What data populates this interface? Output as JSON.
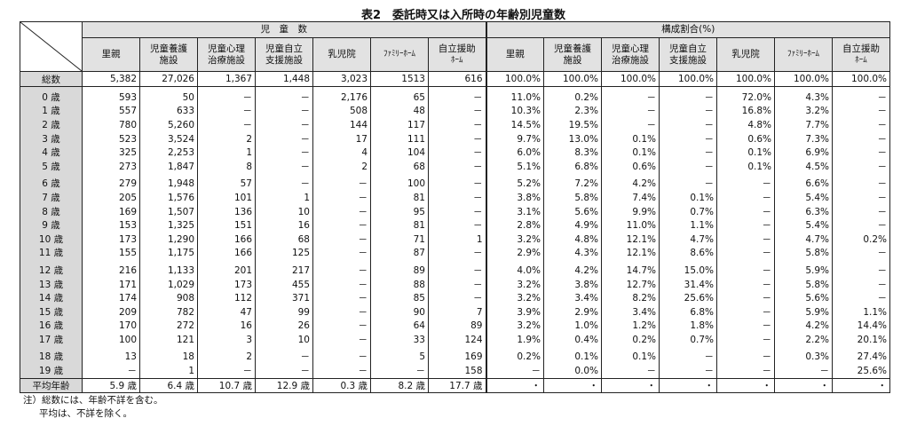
{
  "title": "表2　委託時又は入所時の年齢別児童数",
  "group_headers": [
    "児　童　数",
    "構成割合(%)"
  ],
  "columns": [
    "里親",
    "児童養護\n施設",
    "児童心理\n治療施設",
    "児童自立\n支援施設",
    "乳児院",
    "ﾌｧﾐﾘｰﾎｰﾑ",
    "自立援助\nﾎｰﾑ"
  ],
  "total_row": {
    "label": "総数",
    "counts": [
      "5,382",
      "27,026",
      "1,367",
      "1,448",
      "3,023",
      "1513",
      "616"
    ],
    "pcts": [
      "100.0%",
      "100.0%",
      "100.0%",
      "100.0%",
      "100.0%",
      "100.0%",
      "100.0%"
    ]
  },
  "row_groups": [
    [
      {
        "label": "0 歳",
        "counts": [
          "593",
          "50",
          "－",
          "－",
          "2,176",
          "65",
          "－"
        ],
        "pcts": [
          "11.0%",
          "0.2%",
          "－",
          "－",
          "72.0%",
          "4.3%",
          "－"
        ]
      },
      {
        "label": "1 歳",
        "counts": [
          "557",
          "633",
          "－",
          "－",
          "508",
          "48",
          "－"
        ],
        "pcts": [
          "10.3%",
          "2.3%",
          "－",
          "－",
          "16.8%",
          "3.2%",
          "－"
        ]
      },
      {
        "label": "2 歳",
        "counts": [
          "780",
          "5,260",
          "－",
          "－",
          "144",
          "117",
          "－"
        ],
        "pcts": [
          "14.5%",
          "19.5%",
          "－",
          "－",
          "4.8%",
          "7.7%",
          "－"
        ]
      },
      {
        "label": "3 歳",
        "counts": [
          "523",
          "3,524",
          "2",
          "－",
          "17",
          "111",
          "－"
        ],
        "pcts": [
          "9.7%",
          "13.0%",
          "0.1%",
          "－",
          "0.6%",
          "7.3%",
          "－"
        ]
      },
      {
        "label": "4 歳",
        "counts": [
          "325",
          "2,253",
          "1",
          "－",
          "4",
          "104",
          "－"
        ],
        "pcts": [
          "6.0%",
          "8.3%",
          "0.1%",
          "－",
          "0.1%",
          "6.9%",
          "－"
        ]
      },
      {
        "label": "5 歳",
        "counts": [
          "273",
          "1,847",
          "8",
          "－",
          "2",
          "68",
          "－"
        ],
        "pcts": [
          "5.1%",
          "6.8%",
          "0.6%",
          "－",
          "0.1%",
          "4.5%",
          "－"
        ]
      }
    ],
    [
      {
        "label": "6 歳",
        "counts": [
          "279",
          "1,948",
          "57",
          "－",
          "－",
          "100",
          "－"
        ],
        "pcts": [
          "5.2%",
          "7.2%",
          "4.2%",
          "－",
          "－",
          "6.6%",
          "－"
        ]
      },
      {
        "label": "7 歳",
        "counts": [
          "205",
          "1,576",
          "101",
          "1",
          "－",
          "81",
          "－"
        ],
        "pcts": [
          "3.8%",
          "5.8%",
          "7.4%",
          "0.1%",
          "－",
          "5.4%",
          "－"
        ]
      },
      {
        "label": "8 歳",
        "counts": [
          "169",
          "1,507",
          "136",
          "10",
          "－",
          "95",
          "－"
        ],
        "pcts": [
          "3.1%",
          "5.6%",
          "9.9%",
          "0.7%",
          "－",
          "6.3%",
          "－"
        ]
      },
      {
        "label": "9 歳",
        "counts": [
          "153",
          "1,325",
          "151",
          "16",
          "－",
          "81",
          "－"
        ],
        "pcts": [
          "2.8%",
          "4.9%",
          "11.0%",
          "1.1%",
          "－",
          "5.4%",
          "－"
        ]
      },
      {
        "label": "10 歳",
        "counts": [
          "173",
          "1,290",
          "166",
          "68",
          "－",
          "71",
          "1"
        ],
        "pcts": [
          "3.2%",
          "4.8%",
          "12.1%",
          "4.7%",
          "－",
          "4.7%",
          "0.2%"
        ]
      },
      {
        "label": "11 歳",
        "counts": [
          "155",
          "1,175",
          "166",
          "125",
          "－",
          "87",
          "－"
        ],
        "pcts": [
          "2.9%",
          "4.3%",
          "12.1%",
          "8.6%",
          "－",
          "5.8%",
          "－"
        ]
      }
    ],
    [
      {
        "label": "12 歳",
        "counts": [
          "216",
          "1,133",
          "201",
          "217",
          "－",
          "89",
          "－"
        ],
        "pcts": [
          "4.0%",
          "4.2%",
          "14.7%",
          "15.0%",
          "－",
          "5.9%",
          "－"
        ]
      },
      {
        "label": "13 歳",
        "counts": [
          "171",
          "1,029",
          "173",
          "455",
          "－",
          "88",
          "－"
        ],
        "pcts": [
          "3.2%",
          "3.8%",
          "12.7%",
          "31.4%",
          "－",
          "5.8%",
          "－"
        ]
      },
      {
        "label": "14 歳",
        "counts": [
          "174",
          "908",
          "112",
          "371",
          "－",
          "85",
          "－"
        ],
        "pcts": [
          "3.2%",
          "3.4%",
          "8.2%",
          "25.6%",
          "－",
          "5.6%",
          "－"
        ]
      },
      {
        "label": "15 歳",
        "counts": [
          "209",
          "782",
          "47",
          "99",
          "－",
          "90",
          "7"
        ],
        "pcts": [
          "3.9%",
          "2.9%",
          "3.4%",
          "6.8%",
          "－",
          "5.9%",
          "1.1%"
        ]
      },
      {
        "label": "16 歳",
        "counts": [
          "170",
          "272",
          "16",
          "26",
          "－",
          "64",
          "89"
        ],
        "pcts": [
          "3.2%",
          "1.0%",
          "1.2%",
          "1.8%",
          "－",
          "4.2%",
          "14.4%"
        ]
      },
      {
        "label": "17 歳",
        "counts": [
          "100",
          "121",
          "3",
          "10",
          "－",
          "33",
          "124"
        ],
        "pcts": [
          "1.9%",
          "0.4%",
          "0.2%",
          "0.7%",
          "－",
          "2.2%",
          "20.1%"
        ]
      }
    ],
    [
      {
        "label": "18 歳",
        "counts": [
          "13",
          "18",
          "2",
          "－",
          "－",
          "5",
          "169"
        ],
        "pcts": [
          "0.2%",
          "0.1%",
          "0.1%",
          "－",
          "－",
          "0.3%",
          "27.4%"
        ]
      },
      {
        "label": "19 歳",
        "counts": [
          "－",
          "1",
          "－",
          "－",
          "－",
          "－",
          "158"
        ],
        "pcts": [
          "－",
          "0.0%",
          "－",
          "－",
          "－",
          "－",
          "25.6%"
        ]
      }
    ]
  ],
  "avg_row": {
    "label": "平均年齢",
    "counts": [
      "5.9 歳",
      "6.4 歳",
      "10.7 歳",
      "12.9 歳",
      "0.3 歳",
      "8.2 歳",
      "17.7 歳"
    ],
    "pcts": [
      "・",
      "・",
      "・",
      "・",
      "・",
      "・",
      "・"
    ]
  },
  "notes": [
    "注）総数には、年齢不詳を含む。",
    "平均は、不詳を除く。"
  ]
}
